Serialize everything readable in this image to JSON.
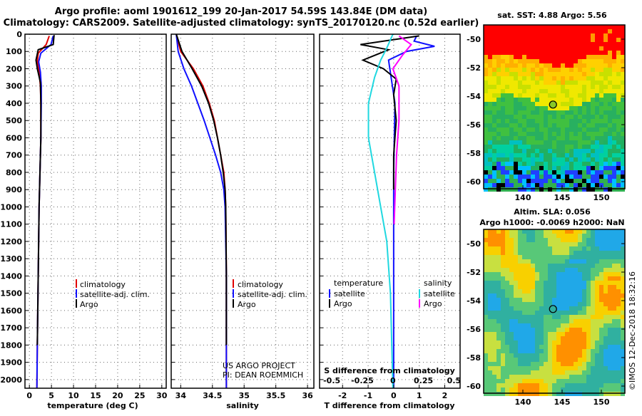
{
  "header": {
    "line1": "Argo profile: aoml 1901612_199 20-Jan-2017 54.59S 143.84E (DM data)",
    "line2": "Climatology: CARS2009. Satellite-adjusted climatology: synTS_20170120.nc (0.52d earlier)"
  },
  "colors": {
    "climatology": "#e00000",
    "satellite": "#1010ff",
    "argo": "#000000",
    "sat_salinity": "#20d8e0",
    "argo_salinity": "#ff00ff"
  },
  "chart_data": [
    {
      "type": "line",
      "id": "temperature",
      "xlabel": "temperature (deg C)",
      "ylabel": "",
      "ylim": [
        2050,
        0
      ],
      "xlim": [
        -1,
        31
      ],
      "xticks": [
        0,
        5,
        10,
        15,
        20,
        25,
        30
      ],
      "yticks": [
        0,
        100,
        200,
        300,
        400,
        500,
        600,
        700,
        800,
        900,
        1000,
        1100,
        1200,
        1300,
        1400,
        1500,
        1600,
        1700,
        1800,
        1900,
        2000
      ],
      "grid": true,
      "legend": [
        "climatology",
        "satellite-adj. clim.",
        "Argo"
      ],
      "series": [
        {
          "name": "climatology",
          "x": [
            4.5,
            3.8,
            2.0,
            1.8,
            2.2,
            2.5,
            2.6,
            2.6,
            2.4,
            2.2,
            2.1,
            2.0,
            1.9,
            1.8,
            1.7
          ],
          "y": [
            10,
            60,
            110,
            160,
            220,
            300,
            400,
            600,
            800,
            1000,
            1200,
            1400,
            1600,
            1800,
            2050
          ]
        },
        {
          "name": "satellite-adj. clim.",
          "x": [
            5.4,
            4.9,
            2.6,
            2.1,
            2.5,
            2.7,
            2.7,
            2.6,
            2.4,
            2.2,
            2.1,
            2.0,
            1.9,
            1.8,
            1.7
          ],
          "y": [
            10,
            60,
            110,
            160,
            220,
            300,
            400,
            600,
            800,
            1000,
            1200,
            1400,
            1600,
            1800,
            2050
          ]
        },
        {
          "name": "Argo",
          "x": [
            5.6,
            5.4,
            2.0,
            1.5,
            1.8,
            2.5,
            2.6,
            2.6,
            2.4,
            2.2,
            2.1,
            2.0,
            1.9,
            1.8
          ],
          "y": [
            5,
            60,
            90,
            150,
            200,
            280,
            400,
            600,
            800,
            1000,
            1200,
            1400,
            1600,
            1800
          ]
        }
      ]
    },
    {
      "type": "line",
      "id": "salinity",
      "xlabel": "salinity",
      "ylabel": "",
      "ylim": [
        2050,
        0
      ],
      "xlim": [
        33.85,
        36.1
      ],
      "xticks": [
        34,
        34.5,
        35,
        35.5,
        36
      ],
      "grid": true,
      "legend": [
        "climatology",
        "satellite-adj. clim.",
        "Argo"
      ],
      "annotations": [
        "US ARGO PROJECT",
        "PI: DEAN ROEMMICH"
      ],
      "series": [
        {
          "name": "climatology",
          "x": [
            33.93,
            34.0,
            34.2,
            34.35,
            34.45,
            34.53,
            34.58,
            34.63,
            34.68,
            34.7,
            34.71,
            34.72,
            34.72
          ],
          "y": [
            0,
            100,
            200,
            300,
            400,
            500,
            600,
            700,
            800,
            900,
            1000,
            1400,
            2050
          ]
        },
        {
          "name": "satellite-adj. clim.",
          "x": [
            33.93,
            33.96,
            34.05,
            34.17,
            34.27,
            34.37,
            34.46,
            34.55,
            34.63,
            34.68,
            34.7,
            34.72,
            34.72
          ],
          "y": [
            0,
            100,
            200,
            300,
            400,
            500,
            600,
            700,
            800,
            900,
            1000,
            1400,
            2050
          ]
        },
        {
          "name": "Argo",
          "x": [
            33.93,
            34.02,
            34.18,
            34.33,
            34.44,
            34.52,
            34.58,
            34.63,
            34.67,
            34.7,
            34.71,
            34.72,
            34.72
          ],
          "y": [
            0,
            100,
            200,
            300,
            400,
            500,
            600,
            700,
            800,
            900,
            1000,
            1400,
            1800
          ]
        }
      ]
    },
    {
      "type": "line",
      "id": "differences",
      "xlabel": "T difference from climatology",
      "x2label": "S difference from climatology",
      "ylabel": "",
      "ylim": [
        2050,
        0
      ],
      "xlim": [
        -2.9,
        2.6
      ],
      "xticks": [
        -2,
        -1,
        0,
        1,
        2
      ],
      "x2ticks": [
        -0.5,
        -0.25,
        0,
        0.25,
        0.5
      ],
      "grid": true,
      "legend_left": {
        "header": "temperature",
        "items": [
          "satellite",
          "Argo"
        ]
      },
      "legend_right": {
        "header": "salinity",
        "items": [
          "satellite",
          "Argo"
        ]
      },
      "series": [
        {
          "name": "temperature satellite",
          "x": [
            0.9,
            0.8,
            1.6,
            0.5,
            -0.2,
            -0.1,
            0.05,
            0.0,
            0.0,
            0.0,
            0.0
          ],
          "y": [
            10,
            40,
            70,
            100,
            150,
            250,
            400,
            800,
            1200,
            1600,
            2050
          ]
        },
        {
          "name": "temperature Argo",
          "x": [
            1.0,
            -1.3,
            -0.2,
            -1.2,
            -0.4,
            0.1,
            0.0,
            0.1,
            0.0,
            0.0
          ],
          "y": [
            10,
            60,
            90,
            150,
            200,
            260,
            350,
            500,
            700,
            900
          ]
        },
        {
          "name": "salinity satellite",
          "x": [
            0.0,
            -0.05,
            -0.1,
            -0.15,
            -0.2,
            -0.2,
            -0.15,
            -0.1,
            -0.05,
            -0.02,
            0.0
          ],
          "y": [
            0,
            80,
            150,
            250,
            400,
            600,
            800,
            1000,
            1200,
            1500,
            2050
          ]
        },
        {
          "name": "salinity Argo",
          "x": [
            0.05,
            0.15,
            0.08,
            0.0,
            0.05,
            0.05,
            0.03,
            0.02,
            0.01
          ],
          "y": [
            10,
            60,
            120,
            200,
            300,
            500,
            700,
            900,
            1100
          ]
        }
      ]
    },
    {
      "type": "heatmap",
      "id": "sst_map",
      "title": "sat. SST: 4.88 Argo: 5.56",
      "xlim": [
        135,
        153
      ],
      "ylim": [
        -60.5,
        -49
      ],
      "xticks": [
        140,
        145,
        150
      ],
      "yticks": [
        -50,
        -52,
        -54,
        -56,
        -58,
        -60
      ],
      "marker": {
        "lon": 143.84,
        "lat": -54.59
      }
    },
    {
      "type": "heatmap",
      "id": "sla_map",
      "title": "Altim. SLA: 0.056",
      "subtitle": "Argo h1000: -0.0069 h2000: NaN",
      "xlim": [
        135,
        153
      ],
      "ylim": [
        -60.5,
        -49
      ],
      "xticks": [
        140,
        145,
        150
      ],
      "yticks": [
        -50,
        -52,
        -54,
        -56,
        -58,
        -60
      ],
      "marker": {
        "lon": 143.84,
        "lat": -54.59
      }
    }
  ],
  "watermark": "©IMOS 12-Dec-2018 18:32:16"
}
